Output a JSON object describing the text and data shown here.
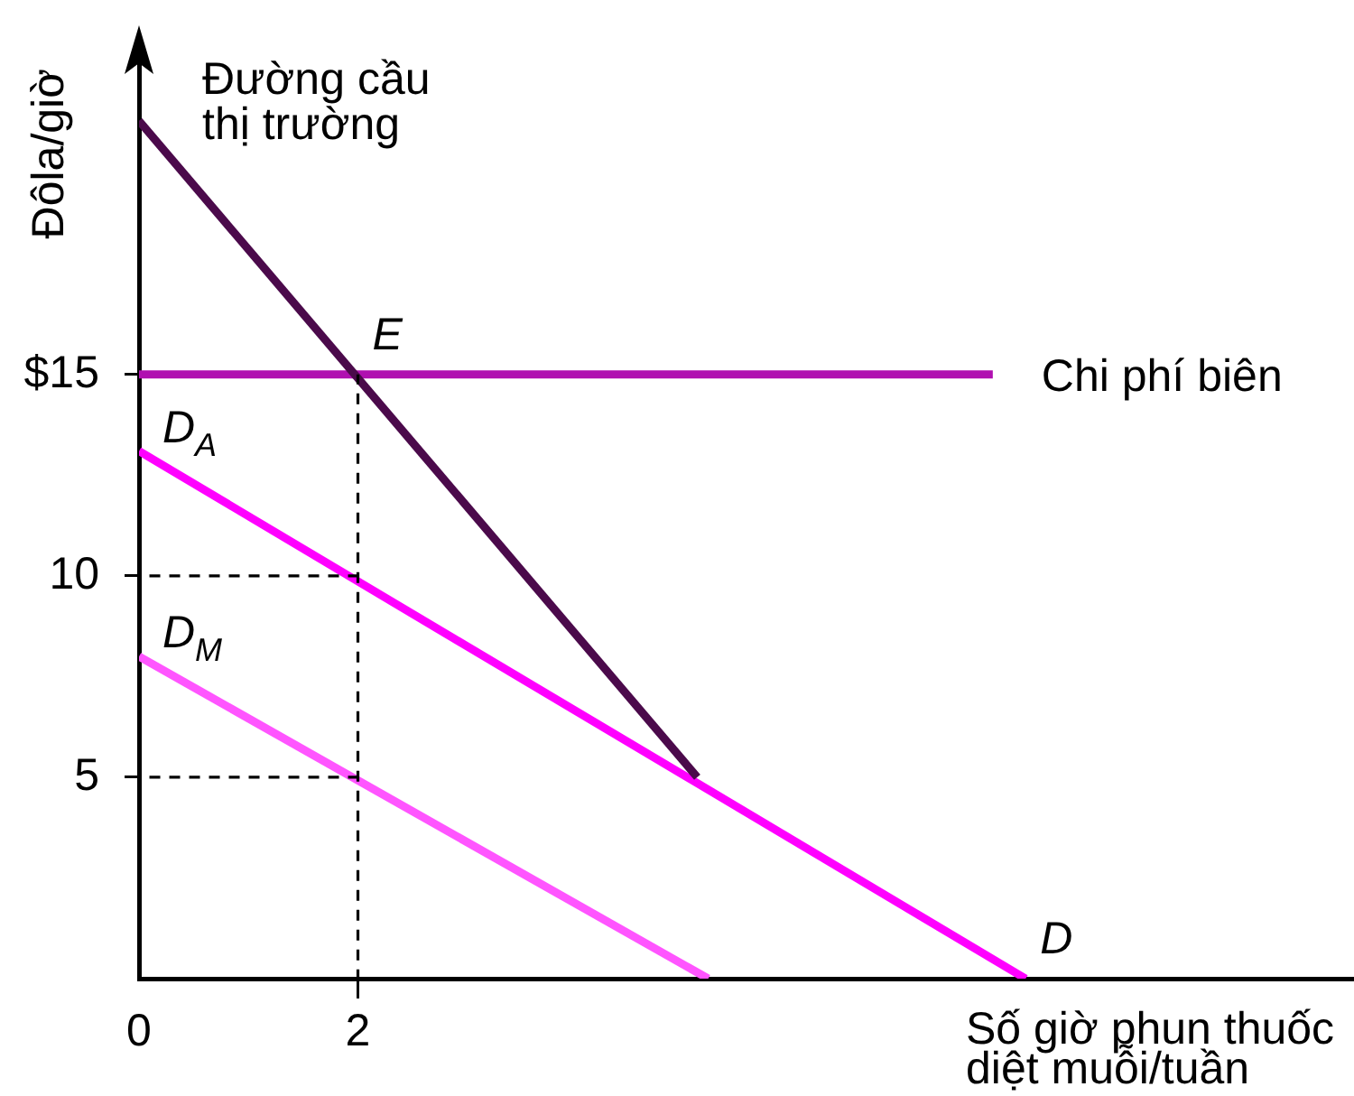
{
  "chart_data": {
    "type": "line",
    "xlabel": "Số giờ phun thuốc diệt muỗi/tuần",
    "ylabel": "Đôla/giờ",
    "xlim": [
      0,
      11.1
    ],
    "ylim": [
      0,
      23
    ],
    "xticks": [
      0,
      2
    ],
    "yticks": [
      5,
      10,
      {
        "value": 15,
        "label": "$15"
      }
    ],
    "series": [
      {
        "name": "Đường cầu thị trường",
        "color": "#4b0a4b",
        "x": [
          0,
          5.1
        ],
        "values": [
          21.3,
          5
        ]
      },
      {
        "name": "Chi phí biên",
        "color": "#b010b0",
        "x": [
          0,
          7.8
        ],
        "values": [
          15,
          15
        ]
      },
      {
        "name": "D$_{A}$",
        "color": "#ff00ff",
        "x": [
          0,
          8.1
        ],
        "values": [
          13.1,
          0
        ]
      },
      {
        "name": "D$_{M}$",
        "color": "#ff55ff",
        "x": [
          0,
          5.2
        ],
        "values": [
          8,
          0
        ]
      },
      {
        "color": "#000000",
        "line_style": "dashed",
        "x": [
          2,
          2
        ],
        "values": [
          0,
          15
        ]
      },
      {
        "color": "#000000",
        "line_style": "dashed",
        "x": [
          0,
          2
        ],
        "values": [
          10,
          10
        ]
      },
      {
        "color": "#000000",
        "line_style": "dashed",
        "x": [
          0,
          2
        ],
        "values": [
          5,
          5
        ]
      }
    ],
    "annotations": [
      {
        "text": "E",
        "x": 2,
        "y": 15
      },
      {
        "text": "D",
        "x": 8.1,
        "y": 0
      }
    ],
    "grid": false,
    "legend": false,
    "marker": "none",
    "line_style": "solid"
  }
}
